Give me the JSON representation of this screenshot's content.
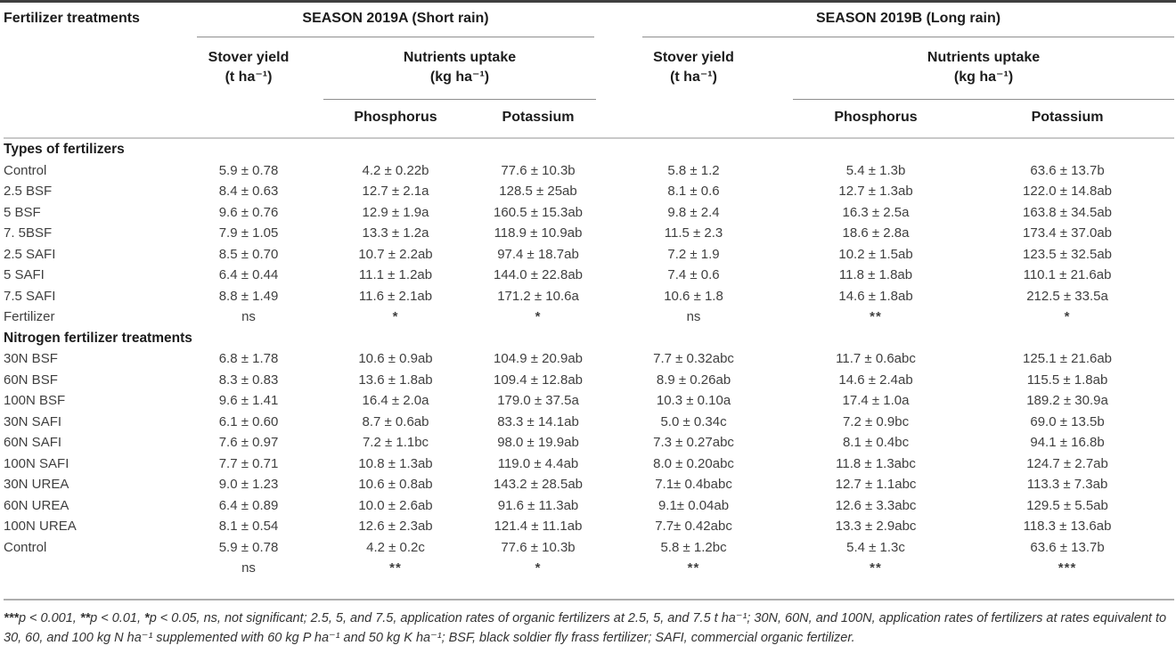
{
  "table": {
    "col_header": "Fertilizer treatments",
    "season_a": {
      "title": "SEASON 2019A (Short rain)",
      "stover_line1": "Stover yield",
      "stover_line2": "(t ha⁻¹)",
      "nutrients_line1": "Nutrients uptake",
      "nutrients_line2": "(kg ha⁻¹)",
      "sub_phosphorus": "Phosphorus",
      "sub_potassium": "Potassium"
    },
    "season_b": {
      "title": "SEASON 2019B (Long rain)",
      "stover_line1": "Stover yield",
      "stover_line2": "(t ha⁻¹)",
      "nutrients_line1": "Nutrients uptake",
      "nutrients_line2": "(kg ha⁻¹)",
      "sub_phosphorus": "Phosphorus",
      "sub_potassium": "Potassium"
    },
    "sections": [
      {
        "title": "Types of fertilizers",
        "rows": [
          {
            "label": "Control",
            "values": [
              "5.9 ± 0.78",
              "4.2 ± 0.22b",
              "77.6 ± 10.3b",
              "5.8 ± 1.2",
              "5.4 ± 1.3b",
              "63.6 ± 13.7b"
            ]
          },
          {
            "label": "2.5 BSF",
            "values": [
              "8.4 ± 0.63",
              "12.7 ± 2.1a",
              "128.5 ± 25ab",
              "8.1 ± 0.6",
              "12.7 ± 1.3ab",
              "122.0 ± 14.8ab"
            ]
          },
          {
            "label": "5 BSF",
            "values": [
              "9.6 ± 0.76",
              "12.9 ± 1.9a",
              "160.5 ± 15.3ab",
              "9.8 ± 2.4",
              "16.3 ± 2.5a",
              "163.8 ± 34.5ab"
            ]
          },
          {
            "label": "7. 5BSF",
            "values": [
              "7.9 ± 1.05",
              "13.3 ± 1.2a",
              "118.9 ± 10.9ab",
              "11.5 ± 2.3",
              "18.6 ± 2.8a",
              "173.4 ± 37.0ab"
            ]
          },
          {
            "label": "2.5 SAFI",
            "values": [
              "8.5 ± 0.70",
              "10.7 ± 2.2ab",
              "97.4 ± 18.7ab",
              "7.2 ± 1.9",
              "10.2 ± 1.5ab",
              "123.5 ± 32.5ab"
            ]
          },
          {
            "label": "5 SAFI",
            "values": [
              "6.4 ± 0.44",
              "11.1 ± 1.2ab",
              "144.0 ± 22.8ab",
              "7.4 ± 0.6",
              "11.8 ± 1.8ab",
              "110.1 ± 21.6ab"
            ]
          },
          {
            "label": "7.5 SAFI",
            "values": [
              "8.8 ± 1.49",
              "11.6 ± 2.1ab",
              "171.2 ± 10.6a",
              "10.6 ± 1.8",
              "14.6 ± 1.8ab",
              "212.5 ± 33.5a"
            ]
          },
          {
            "label": "Fertilizer",
            "values": [
              "ns",
              "*",
              "*",
              "ns",
              "**",
              "*"
            ]
          }
        ]
      },
      {
        "title": "Nitrogen fertilizer treatments",
        "rows": [
          {
            "label": "30N BSF",
            "values": [
              "6.8 ± 1.78",
              "10.6 ± 0.9ab",
              "104.9 ± 20.9ab",
              "7.7 ± 0.32abc",
              "11.7 ± 0.6abc",
              "125.1 ± 21.6ab"
            ]
          },
          {
            "label": "60N BSF",
            "values": [
              "8.3 ± 0.83",
              "13.6 ± 1.8ab",
              "109.4 ± 12.8ab",
              "8.9 ± 0.26ab",
              "14.6 ± 2.4ab",
              "115.5 ± 1.8ab"
            ]
          },
          {
            "label": "100N BSF",
            "values": [
              "9.6 ± 1.41",
              "16.4 ± 2.0a",
              "179.0 ± 37.5a",
              "10.3 ± 0.10a",
              "17.4 ± 1.0a",
              "189.2 ± 30.9a"
            ]
          },
          {
            "label": "30N SAFI",
            "values": [
              "6.1 ± 0.60",
              "8.7 ± 0.6ab",
              "83.3 ± 14.1ab",
              "5.0 ± 0.34c",
              "7.2 ± 0.9bc",
              "69.0 ± 13.5b"
            ]
          },
          {
            "label": "60N SAFI",
            "values": [
              "7.6 ± 0.97",
              "7.2 ± 1.1bc",
              "98.0 ± 19.9ab",
              "7.3 ± 0.27abc",
              "8.1 ± 0.4bc",
              "94.1 ± 16.8b"
            ]
          },
          {
            "label": "100N SAFI",
            "values": [
              "7.7 ± 0.71",
              "10.8 ± 1.3ab",
              "119.0 ± 4.4ab",
              "8.0 ± 0.20abc",
              "11.8 ± 1.3abc",
              "124.7 ± 2.7ab"
            ]
          },
          {
            "label": "30N UREA",
            "values": [
              "9.0 ± 1.23",
              "10.6 ± 0.8ab",
              "143.2 ± 28.5ab",
              "7.1± 0.4babc",
              "12.7 ± 1.1abc",
              "113.3 ± 7.3ab"
            ]
          },
          {
            "label": "60N UREA",
            "values": [
              "6.4 ± 0.89",
              "10.0 ± 2.6ab",
              "91.6 ± 11.3ab",
              "9.1± 0.04ab",
              "12.6 ± 3.3abc",
              "129.5 ± 5.5ab"
            ]
          },
          {
            "label": "100N UREA",
            "values": [
              "8.1 ± 0.54",
              "12.6 ± 2.3ab",
              "121.4 ± 11.1ab",
              "7.7± 0.42abc",
              "13.3 ± 2.9abc",
              "118.3 ± 13.6ab"
            ]
          },
          {
            "label": "Control",
            "values": [
              "5.9 ± 0.78",
              "4.2 ± 0.2c",
              "77.6 ± 10.3b",
              "5.8 ± 1.2bc",
              "5.4 ± 1.3c",
              "63.6 ± 13.7b"
            ]
          },
          {
            "label": "",
            "values": [
              "ns",
              "**",
              "*",
              "**",
              "**",
              "***"
            ]
          }
        ]
      }
    ]
  },
  "footnote": {
    "s1": "***",
    "s2": "p < 0.001, ",
    "s3": "**",
    "s4": "p < 0.01, ",
    "s5": "*",
    "s6": "p < 0.05, ns, not significant; 2.5, 5, and 7.5, application rates of organic fertilizers at 2.5, 5, and 7.5 t ha⁻¹; 30N, 60N, and 100N, application rates of fertilizers at rates equivalent to 30, 60, and 100 kg N ha⁻¹ supplemented with 60 kg P ha⁻¹ and 50 kg K ha⁻¹; BSF, black soldier fly frass fertilizer; SAFI, commercial organic fertilizer."
  }
}
